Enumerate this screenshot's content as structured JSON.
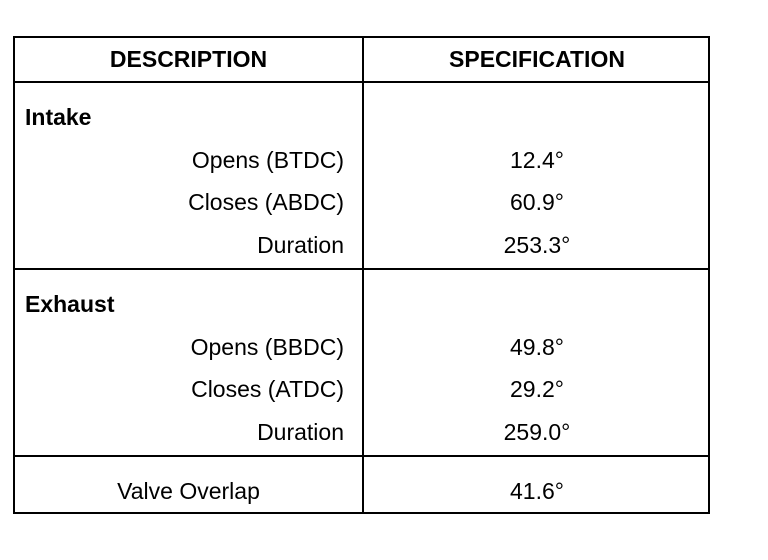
{
  "headers": {
    "description": "DESCRIPTION",
    "specification": "SPECIFICATION"
  },
  "intake": {
    "title": "Intake",
    "rows": [
      {
        "label": "Opens (BTDC)",
        "value": "12.4°"
      },
      {
        "label": "Closes (ABDC)",
        "value": "60.9°"
      },
      {
        "label": "Duration",
        "value": "253.3°"
      }
    ]
  },
  "exhaust": {
    "title": "Exhaust",
    "rows": [
      {
        "label": "Opens (BBDC)",
        "value": "49.8°"
      },
      {
        "label": "Closes (ATDC)",
        "value": "29.2°"
      },
      {
        "label": "Duration",
        "value": "259.0°"
      }
    ]
  },
  "overlap": {
    "label": "Valve Overlap",
    "value": "41.6°"
  }
}
